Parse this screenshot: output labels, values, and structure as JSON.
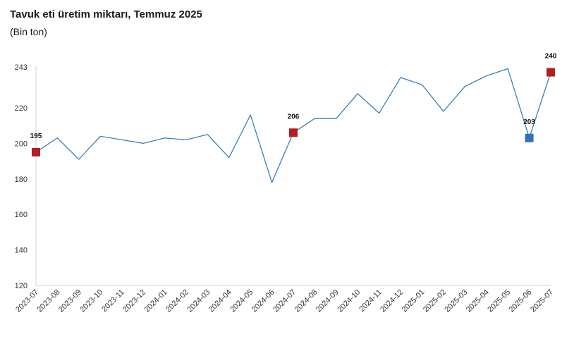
{
  "header": {
    "title": "Tavuk eti üretim miktarı, Temmuz 2025",
    "subtitle": "(Bin ton)"
  },
  "colors": {
    "line": "#2e75b6",
    "highlight_red": "#b41e23",
    "highlight_blue": "#2e75b6",
    "axis": "#d0d0d0"
  },
  "chart_data": {
    "type": "line",
    "title": "Tavuk eti üretim miktarı, Temmuz 2025",
    "subtitle": "(Bin ton)",
    "x": [
      "2023-07",
      "2023-08",
      "2023-09",
      "2023-10",
      "2023-11",
      "2023-12",
      "2024-01",
      "2024-02",
      "2024-03",
      "2024-04",
      "2024-05",
      "2024-06",
      "2024-07",
      "2024-08",
      "2024-09",
      "2024-10",
      "2024-11",
      "2024-12",
      "2025-01",
      "2025-02",
      "2025-03",
      "2025-04",
      "2025-05",
      "2025-06",
      "2025-07"
    ],
    "series": [
      {
        "values": [
          195,
          203,
          191,
          204,
          202,
          200,
          203,
          202,
          205,
          192,
          216,
          178,
          206,
          214,
          214,
          228,
          217,
          237,
          233,
          218,
          232,
          238,
          242,
          203,
          240
        ]
      }
    ],
    "y_ticks": [
      120,
      140,
      160,
      180,
      200,
      220,
      243
    ],
    "ylim": [
      120,
      243
    ],
    "grid": false,
    "legend": "none",
    "highlighted_points": [
      {
        "x": "2023-07",
        "value": 195,
        "label": "195",
        "color": "red"
      },
      {
        "x": "2024-07",
        "value": 206,
        "label": "206",
        "color": "red"
      },
      {
        "x": "2025-06",
        "value": 203,
        "label": "203",
        "color": "blue"
      },
      {
        "x": "2025-07",
        "value": 240,
        "label": "240",
        "color": "red"
      }
    ]
  }
}
